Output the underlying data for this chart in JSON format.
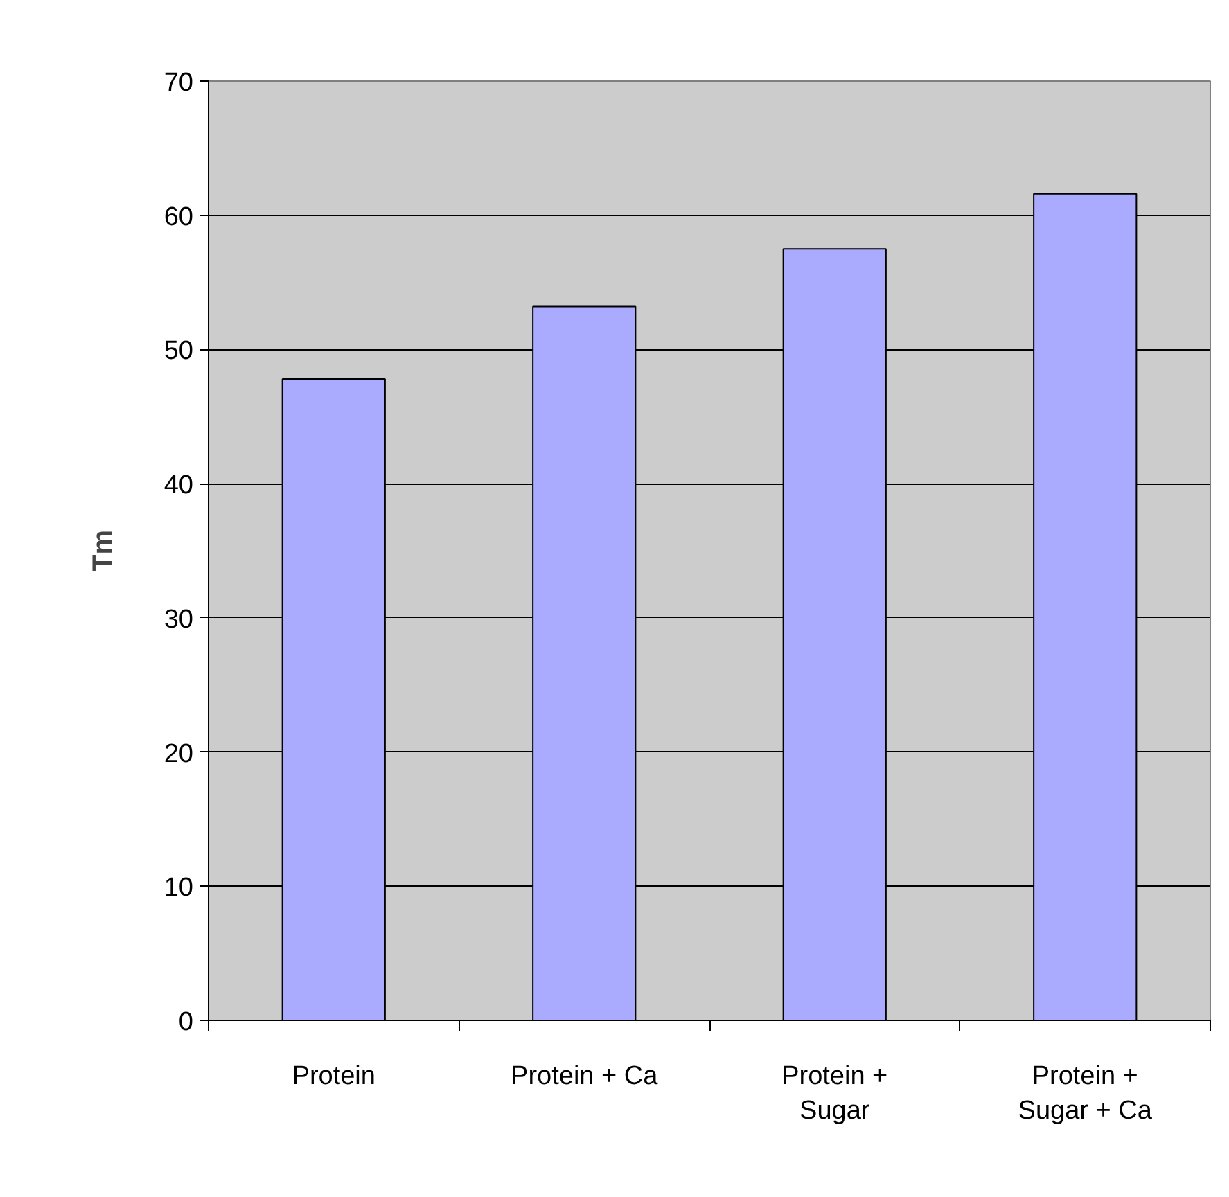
{
  "chart_data": {
    "type": "bar",
    "ylabel": "Tm",
    "categories": [
      "Protein",
      "Protein + Ca",
      "Protein + Sugar",
      "Protein + Sugar + Ca"
    ],
    "values": [
      47.8,
      53.2,
      57.5,
      61.6
    ],
    "color": "#aaaaff",
    "ylim": [
      0,
      70
    ],
    "yticks": [
      0,
      10,
      20,
      30,
      40,
      50,
      60,
      70
    ],
    "grid": "y"
  }
}
